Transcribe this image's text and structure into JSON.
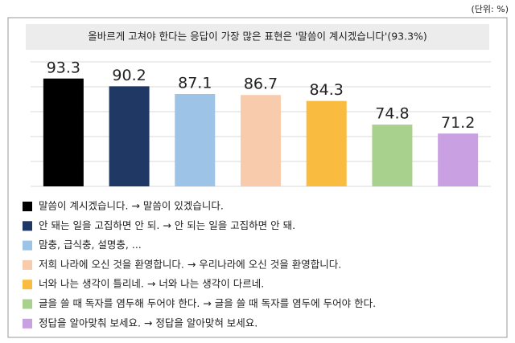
{
  "chart_data": {
    "type": "bar",
    "unit": "(단위: %)",
    "title": "올바르게 고쳐야 한다는 응답이 가장 많은 표현은 '말씀이 계시겠습니다'(93.3%)",
    "categories": [
      "말씀이 계시겠습니다. → 말씀이 있겠습니다.",
      "안 돼는 일을 고집하면 안 되. → 안 되는 일을 고집하면 안 돼.",
      "맘충, 급식충, 설명충, ...",
      "저희 나라에 오신 것을 환영합니다. → 우리나라에 오신 것을 환영합니다.",
      "너와 나는 생각이 틀리네. → 너와 나는 생각이 다르네.",
      "글을 쓸 때 독자를 염두해 두어야 한다. → 글을 쓸 때 독자를 염두에 두어야 한다.",
      "정답을 알아맞춰 보세요. → 정답을 알아맞혀 보세요."
    ],
    "values": [
      93.3,
      90.2,
      87.1,
      86.7,
      84.3,
      74.8,
      71.2
    ],
    "colors": [
      "#000000",
      "#1f3864",
      "#9dc3e6",
      "#f8cbad",
      "#f9bc41",
      "#a9d18e",
      "#c9a0e2"
    ],
    "ylim": [
      50,
      100
    ],
    "yticks": [
      50,
      60,
      70,
      80,
      90,
      100
    ],
    "grid": true
  }
}
